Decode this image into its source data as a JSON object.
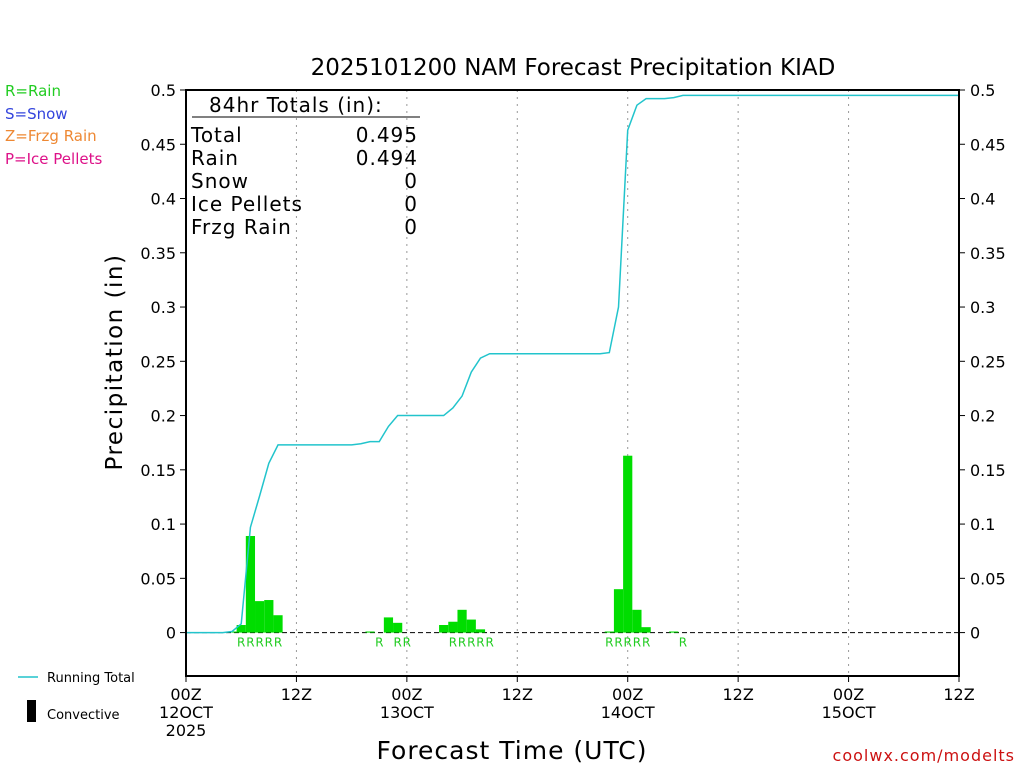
{
  "colors": {
    "rain": "#22cc22",
    "snow": "#3344dd",
    "frzg_rain": "#ee8833",
    "ice_pellets": "#dd1188",
    "running_total": "#22c4cc",
    "bars": "#00dd00",
    "convective": "#000000",
    "watermark": "#cc1111",
    "grid": "#999999"
  },
  "legend_top": {
    "rain": "R=Rain",
    "snow": "S=Snow",
    "frzg_rain": "Z=Frzg Rain",
    "ice_pellets": "P=Ice Pellets"
  },
  "legend_bottom": {
    "running_total": "Running Total",
    "convective": "Convective"
  },
  "watermark": "coolwx.com/modelts",
  "totals": {
    "header": "84hr Totals (in):",
    "rows": [
      {
        "label": "Total",
        "value": "0.495"
      },
      {
        "label": "Rain",
        "value": "0.494"
      },
      {
        "label": "Snow",
        "value": "0"
      },
      {
        "label": "Ice Pellets",
        "value": "0"
      },
      {
        "label": "Frzg Rain",
        "value": "0"
      }
    ]
  },
  "chart_data": {
    "type": "bar",
    "title": "2025101200 NAM Forecast Precipitation KIAD",
    "xlabel": "Forecast Time (UTC)",
    "ylabel": "Precipitation (in)",
    "xlim": [
      0,
      84
    ],
    "ylim": [
      -0.04,
      0.5
    ],
    "yticks": [
      0,
      0.05,
      0.1,
      0.15,
      0.2,
      0.25,
      0.3,
      0.35,
      0.4,
      0.45,
      0.5
    ],
    "ytick_labels": [
      "0",
      "0.05",
      "0.1",
      "0.15",
      "0.2",
      "0.25",
      "0.3",
      "0.35",
      "0.4",
      "0.45",
      "0.5"
    ],
    "xticks": [
      {
        "hour": 0,
        "lines": [
          "00Z",
          "12OCT",
          "2025"
        ]
      },
      {
        "hour": 12,
        "lines": [
          "12Z"
        ]
      },
      {
        "hour": 24,
        "lines": [
          "00Z",
          "13OCT"
        ]
      },
      {
        "hour": 36,
        "lines": [
          "12Z"
        ]
      },
      {
        "hour": 48,
        "lines": [
          "00Z",
          "14OCT"
        ]
      },
      {
        "hour": 60,
        "lines": [
          "12Z"
        ]
      },
      {
        "hour": 72,
        "lines": [
          "00Z",
          "15OCT"
        ]
      },
      {
        "hour": 84,
        "lines": [
          "12Z"
        ]
      }
    ],
    "gridlines_hours": [
      12,
      24,
      36,
      48,
      60,
      72
    ],
    "bar_width_hours": 1,
    "hourly_precip": [
      {
        "hour": 5,
        "value": 0.001
      },
      {
        "hour": 6,
        "value": 0.007
      },
      {
        "hour": 7,
        "value": 0.089
      },
      {
        "hour": 8,
        "value": 0.029
      },
      {
        "hour": 9,
        "value": 0.03
      },
      {
        "hour": 10,
        "value": 0.016
      },
      {
        "hour": 20,
        "value": 0.001
      },
      {
        "hour": 22,
        "value": 0.014
      },
      {
        "hour": 23,
        "value": 0.009
      },
      {
        "hour": 28,
        "value": 0.007
      },
      {
        "hour": 29,
        "value": 0.01
      },
      {
        "hour": 30,
        "value": 0.021
      },
      {
        "hour": 31,
        "value": 0.012
      },
      {
        "hour": 32,
        "value": 0.003
      },
      {
        "hour": 46,
        "value": 0.001
      },
      {
        "hour": 47,
        "value": 0.04
      },
      {
        "hour": 48,
        "value": 0.163
      },
      {
        "hour": 49,
        "value": 0.021
      },
      {
        "hour": 50,
        "value": 0.005
      },
      {
        "hour": 53,
        "value": 0.001
      }
    ],
    "running_total": {
      "x": [
        0,
        4,
        5,
        6,
        7,
        8,
        9,
        10,
        18,
        19,
        20,
        21,
        22,
        23,
        24,
        25,
        26,
        27,
        28,
        29,
        30,
        31,
        32,
        33,
        34,
        35,
        36,
        37,
        38,
        39,
        40,
        41,
        42,
        43,
        44,
        45,
        46,
        47,
        48,
        49,
        50,
        51,
        52,
        53,
        54,
        84
      ],
      "y": [
        0,
        0,
        0.001,
        0.008,
        0.097,
        0.126,
        0.156,
        0.173,
        0.173,
        0.174,
        0.176,
        0.176,
        0.19,
        0.2,
        0.2,
        0.2,
        0.2,
        0.2,
        0.2,
        0.207,
        0.218,
        0.24,
        0.253,
        0.257,
        0.257,
        0.257,
        0.257,
        0.257,
        0.257,
        0.257,
        0.257,
        0.257,
        0.257,
        0.257,
        0.257,
        0.257,
        0.258,
        0.3,
        0.463,
        0.486,
        0.492,
        0.492,
        0.492,
        0.493,
        0.495,
        0.495
      ]
    },
    "ptype_markers": [
      {
        "hour": 6,
        "label": "R"
      },
      {
        "hour": 7,
        "label": "R"
      },
      {
        "hour": 8,
        "label": "R"
      },
      {
        "hour": 9,
        "label": "R"
      },
      {
        "hour": 10,
        "label": "R"
      },
      {
        "hour": 21,
        "label": "R"
      },
      {
        "hour": 23,
        "label": "R"
      },
      {
        "hour": 24,
        "label": "R"
      },
      {
        "hour": 29,
        "label": "R"
      },
      {
        "hour": 30,
        "label": "R"
      },
      {
        "hour": 31,
        "label": "R"
      },
      {
        "hour": 32,
        "label": "R"
      },
      {
        "hour": 33,
        "label": "R"
      },
      {
        "hour": 46,
        "label": "R"
      },
      {
        "hour": 47,
        "label": "R"
      },
      {
        "hour": 48,
        "label": "R"
      },
      {
        "hour": 49,
        "label": "R"
      },
      {
        "hour": 50,
        "label": "R"
      },
      {
        "hour": 54,
        "label": "R"
      }
    ]
  }
}
